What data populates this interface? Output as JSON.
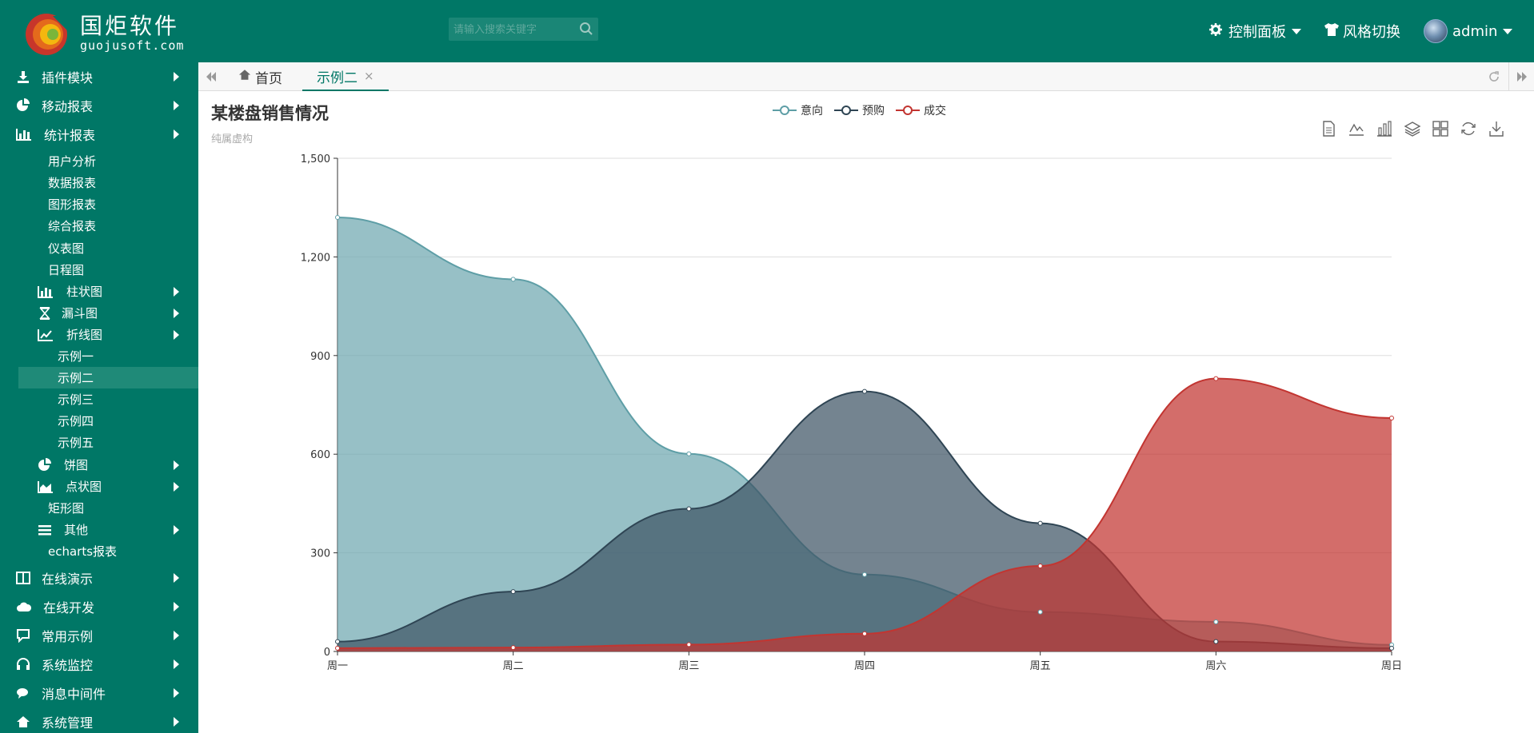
{
  "app": {
    "logo_cn": "国炬软件",
    "logo_en": "guojusoft.com",
    "search_placeholder": "请输入搜索关键字"
  },
  "header": {
    "control_panel": "控制面板",
    "theme_switch": "风格切换",
    "user": "admin"
  },
  "sidebar": {
    "top_items": [
      {
        "label": "插件模块",
        "icon": "download-icon"
      },
      {
        "label": "移动报表",
        "icon": "pie-icon"
      },
      {
        "label": "统计报表",
        "icon": "bar-chart-icon"
      }
    ],
    "stats_children": [
      "用户分析",
      "数据报表",
      "图形报表",
      "综合报表",
      "仪表图",
      "日程图"
    ],
    "chart_groups": [
      {
        "label": "柱状图",
        "icon": "bar-chart-icon"
      },
      {
        "label": "漏斗图",
        "icon": "hourglass-icon"
      },
      {
        "label": "折线图",
        "icon": "line-chart-icon"
      }
    ],
    "line_children": [
      "示例一",
      "示例二",
      "示例三",
      "示例四",
      "示例五"
    ],
    "more_groups": [
      {
        "label": "饼图",
        "icon": "pie-icon"
      },
      {
        "label": "点状图",
        "icon": "area-chart-icon"
      }
    ],
    "treemap": "矩形图",
    "other": "其他",
    "echarts": "echarts报表",
    "bottom_items": [
      {
        "label": "在线演示",
        "icon": "columns-icon"
      },
      {
        "label": "在线开发",
        "icon": "cloud-icon"
      },
      {
        "label": "常用示例",
        "icon": "comment-icon"
      },
      {
        "label": "系统监控",
        "icon": "headphones-icon"
      },
      {
        "label": "消息中间件",
        "icon": "comments-icon"
      },
      {
        "label": "系统管理",
        "icon": "home-icon"
      }
    ]
  },
  "tabs": {
    "home": "首页",
    "active": "示例二",
    "close": "×"
  },
  "chart_data": {
    "type": "area",
    "title": "某楼盘销售情况",
    "subtitle": "纯属虚构",
    "categories": [
      "周一",
      "周二",
      "周三",
      "周四",
      "周五",
      "周六",
      "周日"
    ],
    "ylim": [
      0,
      1500
    ],
    "yticks": [
      0,
      300,
      600,
      900,
      1200,
      1500
    ],
    "ytick_labels": [
      "0",
      "300",
      "600",
      "900",
      "1,200",
      "1,500"
    ],
    "grid": true,
    "legend_position": "top-center",
    "series": [
      {
        "name": "意向",
        "values": [
          1320,
          1132,
          601,
          234,
          120,
          90,
          20
        ],
        "color": "#5e9ea6",
        "fill": "#6fa8b0"
      },
      {
        "name": "预购",
        "values": [
          30,
          182,
          434,
          791,
          390,
          30,
          10
        ],
        "color": "#2f4554",
        "fill": "#3f5565"
      },
      {
        "name": "成交",
        "values": [
          10,
          12,
          21,
          54,
          260,
          830,
          710
        ],
        "color": "#c23531",
        "fill": "#c23531"
      }
    ]
  }
}
